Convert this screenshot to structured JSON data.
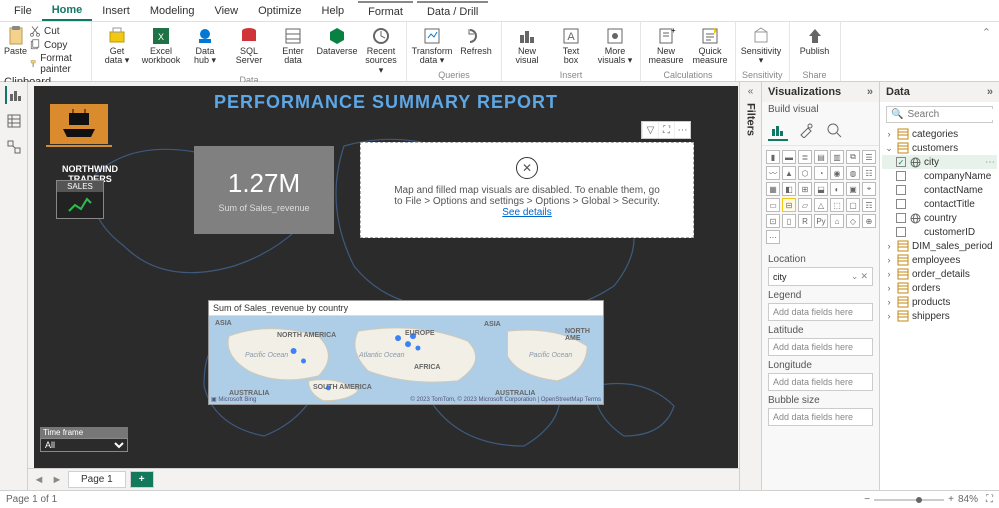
{
  "menu": {
    "tabs": [
      "File",
      "Home",
      "Insert",
      "Modeling",
      "View",
      "Optimize",
      "Help"
    ],
    "active": "Home",
    "context_tabs": [
      "Format",
      "Data / Drill"
    ]
  },
  "ribbon": {
    "clipboard": {
      "label": "Clipboard",
      "paste": "Paste",
      "cut": "Cut",
      "copy": "Copy",
      "fmt": "Format painter"
    },
    "data": {
      "label": "Data",
      "items": [
        {
          "l1": "Get",
          "l2": "data ▾"
        },
        {
          "l1": "Excel",
          "l2": "workbook"
        },
        {
          "l1": "Data",
          "l2": "hub ▾"
        },
        {
          "l1": "SQL",
          "l2": "Server"
        },
        {
          "l1": "Enter",
          "l2": "data"
        },
        {
          "l1": "Dataverse",
          "l2": ""
        },
        {
          "l1": "Recent",
          "l2": "sources ▾"
        }
      ]
    },
    "queries": {
      "label": "Queries",
      "items": [
        {
          "l1": "Transform",
          "l2": "data ▾"
        },
        {
          "l1": "Refresh",
          "l2": ""
        }
      ]
    },
    "insert": {
      "label": "Insert",
      "items": [
        {
          "l1": "New",
          "l2": "visual"
        },
        {
          "l1": "Text",
          "l2": "box"
        },
        {
          "l1": "More",
          "l2": "visuals ▾"
        }
      ]
    },
    "calc": {
      "label": "Calculations",
      "items": [
        {
          "l1": "New",
          "l2": "measure"
        },
        {
          "l1": "Quick",
          "l2": "measure"
        }
      ]
    },
    "sens": {
      "label": "Sensitivity",
      "items": [
        {
          "l1": "Sensitivity",
          "l2": "▾"
        }
      ]
    },
    "share": {
      "label": "Share",
      "items": [
        {
          "l1": "Publish",
          "l2": ""
        }
      ]
    }
  },
  "canvas": {
    "title": "PERFORMANCE SUMMARY REPORT",
    "brand": "NORTHWIND TRADERS",
    "sales_card": "SALES",
    "kpi_value": "1.27M",
    "kpi_label": "Sum of Sales_revenue",
    "map_msg": "Map and filled map visuals are disabled. To enable them, go to File > Options and settings > Options > Global > Security.",
    "map_link": "See details",
    "submap_title": "Sum of Sales_revenue by country",
    "submap_labels": {
      "asia": "ASIA",
      "na": "NORTH AMERICA",
      "eu": "EUROPE",
      "af": "AFRICA",
      "sa": "SOUTH AMERICA",
      "au": "AUSTRALIA",
      "name": "NORTH AME",
      "po": "Pacific Ocean",
      "ao": "Atlantic Ocean"
    },
    "submap_footer": "© 2023 TomTom, © 2023 Microsoft Corporation | OpenStreetMap Terms",
    "timeframe_label": "Time frame",
    "timeframe_value": "All"
  },
  "filters_label": "Filters",
  "viz": {
    "title": "Visualizations",
    "build": "Build visual",
    "wells": [
      {
        "label": "Location",
        "value": "city",
        "filled": true
      },
      {
        "label": "Legend",
        "value": "Add data fields here",
        "filled": false
      },
      {
        "label": "Latitude",
        "value": "Add data fields here",
        "filled": false
      },
      {
        "label": "Longitude",
        "value": "Add data fields here",
        "filled": false
      },
      {
        "label": "Bubble size",
        "value": "Add data fields here",
        "filled": false
      }
    ]
  },
  "data": {
    "title": "Data",
    "search_ph": "Search",
    "tables": [
      {
        "name": "categories",
        "open": false
      },
      {
        "name": "customers",
        "open": true,
        "fields": [
          {
            "name": "city",
            "checked": true,
            "icon": "globe"
          },
          {
            "name": "companyName",
            "checked": false
          },
          {
            "name": "contactName",
            "checked": false
          },
          {
            "name": "contactTitle",
            "checked": false
          },
          {
            "name": "country",
            "checked": false,
            "icon": "globe"
          },
          {
            "name": "customerID",
            "checked": false
          }
        ]
      },
      {
        "name": "DIM_sales_period",
        "open": false
      },
      {
        "name": "employees",
        "open": false
      },
      {
        "name": "order_details",
        "open": false
      },
      {
        "name": "orders",
        "open": false
      },
      {
        "name": "products",
        "open": false
      },
      {
        "name": "shippers",
        "open": false
      }
    ]
  },
  "page": {
    "tab": "Page 1",
    "status": "Page 1 of 1",
    "zoom": "84%"
  },
  "colors": {
    "accent": "#117865",
    "canvas": "#2b2b2b",
    "title": "#5da7e6"
  }
}
